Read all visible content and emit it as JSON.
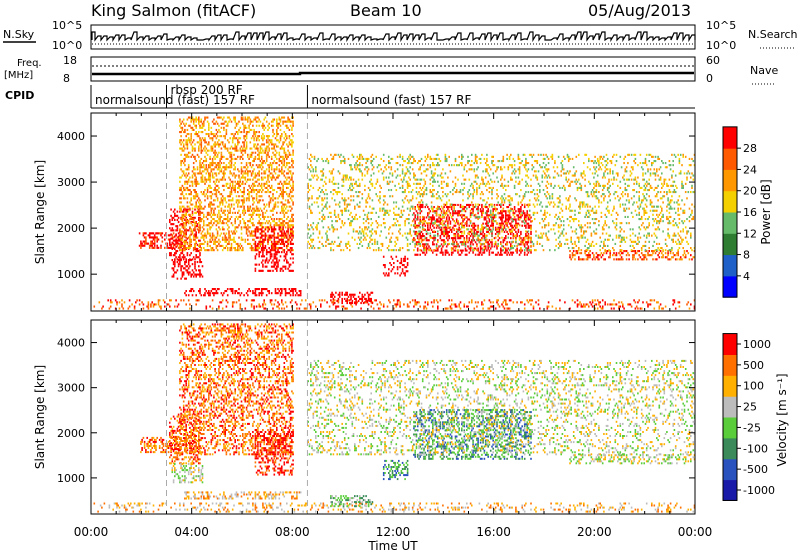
{
  "header": {
    "station": "King Salmon (fitACF)",
    "beam": "Beam 10",
    "date": "05/Aug/2013"
  },
  "top_panels": {
    "nsky_label": "N.Sky",
    "nsky_ticks": [
      "10^5",
      "10^0"
    ],
    "nsearch_label": "N.Search",
    "nsearch_ticks": [
      "10^5",
      "10^0"
    ],
    "freq_label_line1": "Freq.",
    "freq_label_line2": "[MHz]",
    "freq_ticks": [
      "18",
      "8"
    ],
    "nave_label": "Nave",
    "nave_ticks": [
      "60",
      "0"
    ],
    "cpid_label": "CPID"
  },
  "cpid_segments": [
    {
      "label": "normalsound (fast) 157 RF",
      "start_hour": 0,
      "end_hour": 3.0
    },
    {
      "label": "rbsp 200 RF",
      "start_hour": 3.0,
      "end_hour": 8.6
    },
    {
      "label": "normalsound (fast) 157 RF",
      "start_hour": 8.6,
      "end_hour": 24
    }
  ],
  "chart_data": [
    {
      "type": "heatmap",
      "name": "power",
      "ylabel": "Slant Range [km]",
      "xlabel": "Time UT",
      "x_ticks": [
        "00:00",
        "04:00",
        "08:00",
        "12:00",
        "16:00",
        "20:00",
        "00:00"
      ],
      "x_tick_hours": [
        0,
        4,
        8,
        12,
        16,
        20,
        24
      ],
      "xlim": [
        0,
        24
      ],
      "y_ticks": [
        1000,
        2000,
        3000,
        4000
      ],
      "ylim": [
        200,
        4500
      ],
      "colorbar": {
        "label": "Power [dB]",
        "ticks": [
          "4",
          "8",
          "12",
          "16",
          "20",
          "24",
          "28"
        ],
        "range": [
          0,
          30
        ],
        "colors": [
          "#0000ff",
          "#1f5fc8",
          "#2e7d32",
          "#66bb6a",
          "#f5d000",
          "#ff9800",
          "#ff5a00",
          "#ff0000"
        ]
      },
      "regions": [
        {
          "t": [
            0.1,
            24
          ],
          "r": [
            230,
            420
          ],
          "level": 6
        },
        {
          "t": [
            1.9,
            3.5
          ],
          "r": [
            1550,
            1900
          ],
          "level": 7
        },
        {
          "t": [
            3.1,
            4.3
          ],
          "r": [
            1300,
            2400
          ],
          "level": 11
        },
        {
          "t": [
            3.2,
            4.4
          ],
          "r": [
            880,
            1320
          ],
          "level": 9
        },
        {
          "t": [
            3.7,
            8.3
          ],
          "r": [
            520,
            700
          ],
          "level": 8
        },
        {
          "t": [
            3.5,
            8.0
          ],
          "r": [
            1500,
            4400
          ],
          "level": 5
        },
        {
          "t": [
            6.5,
            8.0
          ],
          "r": [
            1050,
            2000
          ],
          "level": 11
        },
        {
          "t": [
            9.5,
            11.2
          ],
          "r": [
            350,
            600
          ],
          "level": 14
        },
        {
          "t": [
            11.6,
            12.6
          ],
          "r": [
            950,
            1400
          ],
          "level": 12
        },
        {
          "t": [
            12.8,
            17.5
          ],
          "r": [
            1400,
            2500
          ],
          "level": 8
        },
        {
          "t": [
            19.0,
            24
          ],
          "r": [
            1300,
            1500
          ],
          "level": 6
        },
        {
          "t": [
            8.6,
            24
          ],
          "r": [
            1500,
            3600
          ],
          "level": 4
        }
      ]
    },
    {
      "type": "heatmap",
      "name": "velocity",
      "ylabel": "Slant Range [km]",
      "xlabel": "Time UT",
      "x_ticks": [
        "00:00",
        "04:00",
        "08:00",
        "12:00",
        "16:00",
        "20:00",
        "00:00"
      ],
      "x_tick_hours": [
        0,
        4,
        8,
        12,
        16,
        20,
        24
      ],
      "xlim": [
        0,
        24
      ],
      "y_ticks": [
        1000,
        2000,
        3000,
        4000
      ],
      "ylim": [
        200,
        4500
      ],
      "colorbar": {
        "label": "Velocity [m s⁻¹]",
        "ticks": [
          "1000",
          "500",
          "100",
          "25",
          "-25",
          "-100",
          "-500",
          "-1000"
        ],
        "colors": [
          "#1a1aa8",
          "#2a52be",
          "#3a8a5a",
          "#5acd3a",
          "#bcbcbc",
          "#ffb000",
          "#ff7000",
          "#ff0000"
        ]
      },
      "regions": [
        {
          "t": [
            0.1,
            24
          ],
          "r": [
            230,
            420
          ],
          "level": 5
        },
        {
          "t": [
            1.9,
            3.5
          ],
          "r": [
            1550,
            1900
          ],
          "level": 6
        },
        {
          "t": [
            3.1,
            4.3
          ],
          "r": [
            1300,
            2400
          ],
          "level": 6
        },
        {
          "t": [
            3.2,
            4.4
          ],
          "r": [
            880,
            1320
          ],
          "level": 4
        },
        {
          "t": [
            3.7,
            8.3
          ],
          "r": [
            520,
            700
          ],
          "level": 5
        },
        {
          "t": [
            3.5,
            8.0
          ],
          "r": [
            1500,
            4400
          ],
          "level": 6
        },
        {
          "t": [
            6.5,
            8.0
          ],
          "r": [
            1050,
            2000
          ],
          "level": 7
        },
        {
          "t": [
            9.5,
            11.2
          ],
          "r": [
            350,
            600
          ],
          "level": 3
        },
        {
          "t": [
            11.6,
            12.6
          ],
          "r": [
            950,
            1400
          ],
          "level": 2
        },
        {
          "t": [
            12.8,
            17.5
          ],
          "r": [
            1400,
            2500
          ],
          "level": 2
        },
        {
          "t": [
            19.0,
            24
          ],
          "r": [
            1300,
            1500
          ],
          "level": 4
        },
        {
          "t": [
            8.6,
            24
          ],
          "r": [
            1500,
            3600
          ],
          "level": 4
        }
      ]
    }
  ]
}
